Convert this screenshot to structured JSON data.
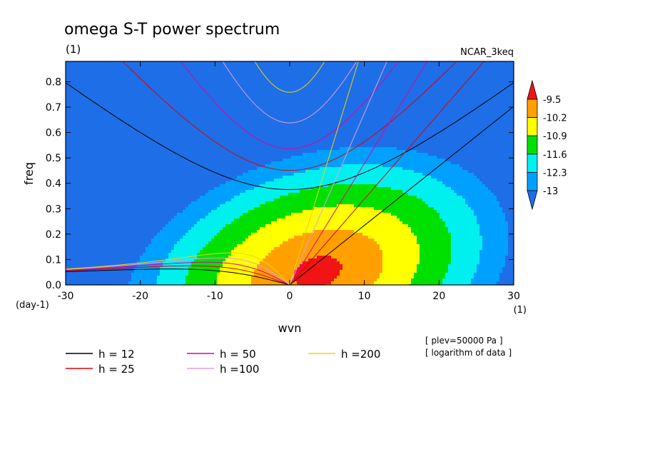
{
  "chart_data": {
    "type": "heatmap",
    "title": "omega S-T power spectrum",
    "subtitle": "(1)",
    "model_label": "NCAR_3keq",
    "xlabel": "wvn",
    "ylabel": "freq",
    "x_unit": "(1)",
    "y_unit": "(day-1)",
    "xlim": [
      -30,
      30
    ],
    "ylim": [
      0,
      0.88
    ],
    "x_ticks": [
      -30,
      -20,
      -10,
      0,
      10,
      20,
      30
    ],
    "x_tick_labels": [
      "-30",
      "-20",
      "-10",
      "0",
      "10",
      "20",
      "30"
    ],
    "y_ticks": [
      0,
      0.1,
      0.2,
      0.3,
      0.4,
      0.5,
      0.6,
      0.7,
      0.8
    ],
    "y_tick_labels": [
      "0.0",
      "0.1",
      "0.2",
      "0.3",
      "0.4",
      "0.5",
      "0.6",
      "0.7",
      "0.8"
    ],
    "colorbar": {
      "levels": [
        -13,
        -12.3,
        -11.6,
        -10.9,
        -10.2,
        -9.5
      ],
      "labels": [
        "-13",
        "-12.3",
        "-11.6",
        "-10.9",
        "-10.2",
        "-9.5"
      ],
      "colors": [
        "#1e6ee8",
        "#00a0ff",
        "#00f0f0",
        "#00e000",
        "#ffff00",
        "#ffa000",
        "#f01414"
      ]
    },
    "field": {
      "description": "log10 power; peak near wvn 3, freq 0.05, decaying with distance and tilted toward positive wavenumber",
      "peak_wvn": 3,
      "peak_freq": 0.05,
      "peak_value": -9.15
    },
    "dispersion_curves": [
      {
        "h": 12,
        "label": "h = 12",
        "color": "#000000"
      },
      {
        "h": 25,
        "label": "h = 25",
        "color": "#e00000"
      },
      {
        "h": 50,
        "label": "h = 50",
        "color": "#e000a0"
      },
      {
        "h": 100,
        "label": "h =100",
        "color": "#e0a0e0"
      },
      {
        "h": 200,
        "label": "h =200",
        "color": "#e8d800"
      }
    ],
    "annotations": [
      "[ plev=50000 Pa ]",
      "[ logarithm of data ]"
    ]
  }
}
